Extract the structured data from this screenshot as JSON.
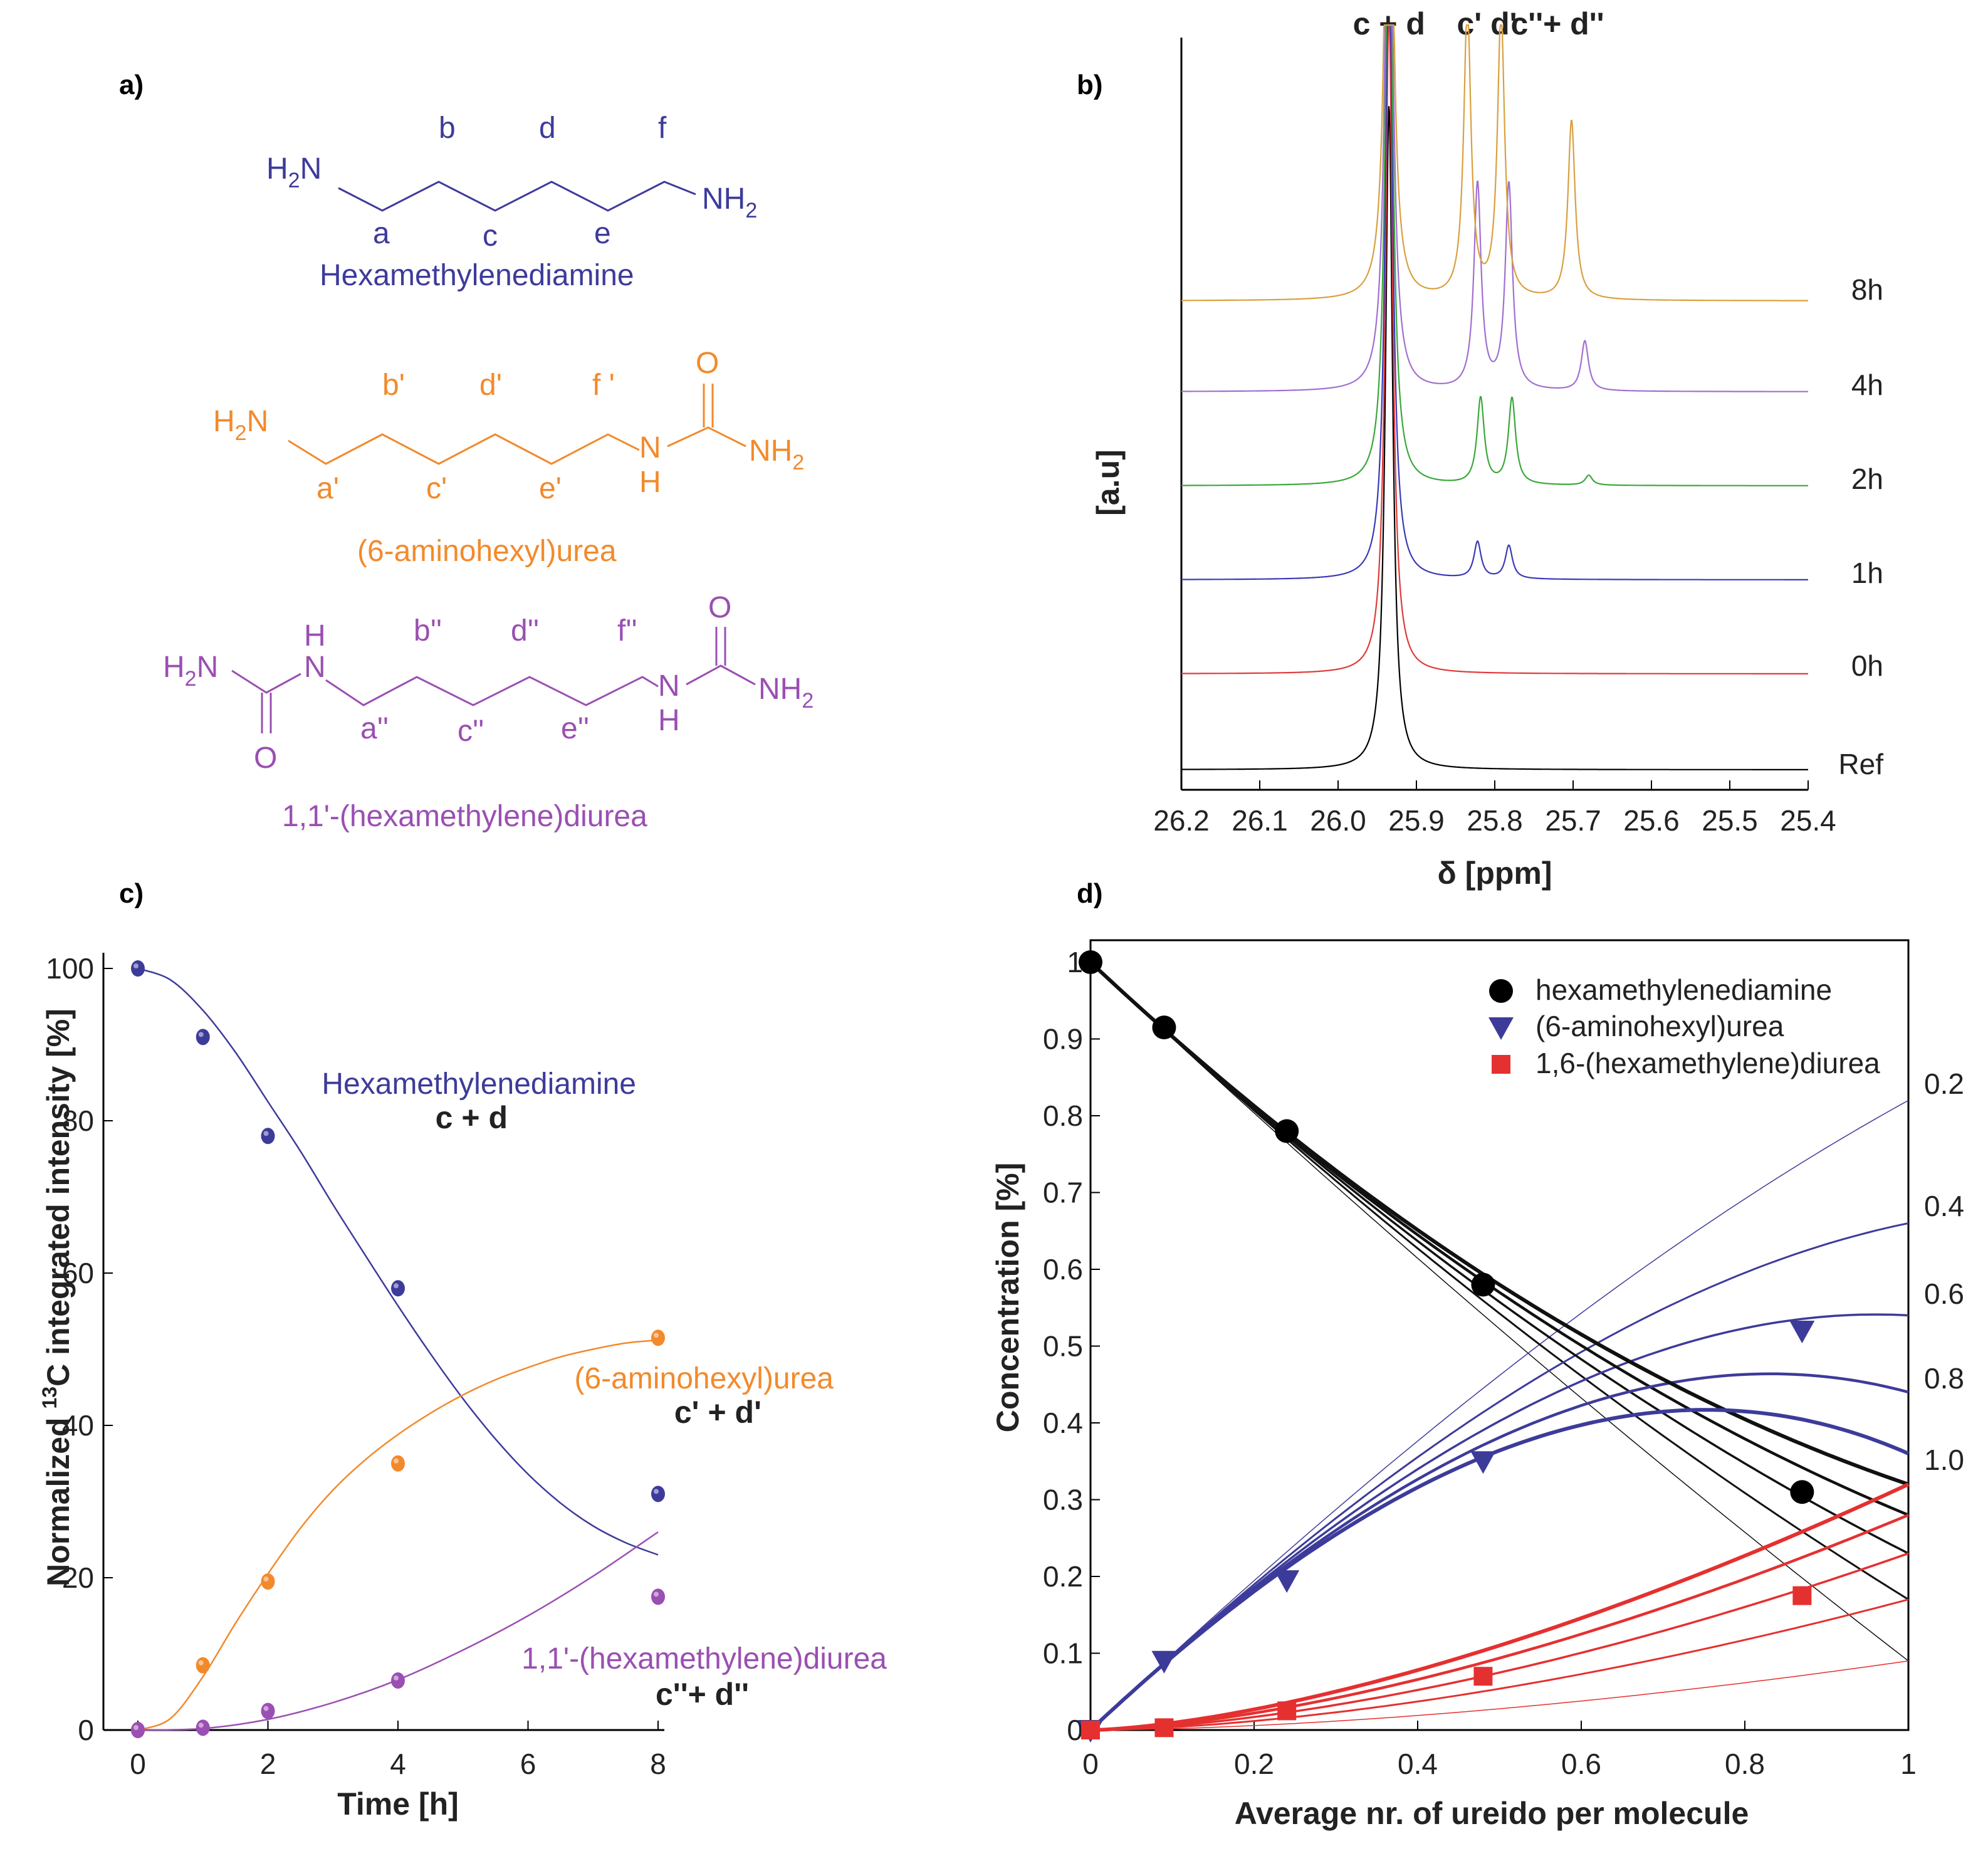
{
  "panel_labels": {
    "a": "a)",
    "b": "b)",
    "c": "c)",
    "d": "d)"
  },
  "molecules": [
    {
      "name": "Hexamethylenediamine",
      "color": "#3d3b9a",
      "left_group": "H2N",
      "right_group": "NH2",
      "top_letters": [
        "b",
        "d",
        "f"
      ],
      "bottom_letters": [
        "a",
        "c",
        "e"
      ]
    },
    {
      "name": "(6-aminohexyl)urea",
      "color": "#f28a2c",
      "left_group": "H2N",
      "right_group": "NH2",
      "urea_N": "N",
      "urea_H": "H",
      "urea_O": "O",
      "top_letters": [
        "b'",
        "d'",
        "f '"
      ],
      "bottom_letters": [
        "a'",
        "c'",
        "e'"
      ]
    },
    {
      "name": "1,1'-(hexamethylene)diurea",
      "color": "#9a4fb2",
      "left_group": "H2N",
      "right_group": "NH2",
      "urea_N": "N",
      "urea_H": "H",
      "urea_O": "O",
      "top_letters": [
        "b''",
        "d''",
        "f''"
      ],
      "bottom_letters": [
        "a''",
        "c''",
        "e''"
      ]
    }
  ],
  "chart_data": [
    {
      "id": "b",
      "type": "line",
      "title": "",
      "xlabel": "δ [ppm]",
      "ylabel": "[a.u]",
      "xlim": [
        26.2,
        25.4
      ],
      "x_ticks": [
        "26.2",
        "26.1",
        "26.0",
        "25.9",
        "25.8",
        "25.7",
        "25.6",
        "25.5",
        "25.4"
      ],
      "peak_labels": [
        {
          "text": "c + d",
          "ppm": 25.935
        },
        {
          "text": "c' d'",
          "ppm": 25.81
        },
        {
          "text": "c''+ d''",
          "ppm": 25.72
        }
      ],
      "series": [
        {
          "name": "Ref",
          "color": "#000000",
          "peaks": [
            {
              "ppm": 25.935,
              "height": 1.0
            }
          ]
        },
        {
          "name": "0h",
          "color": "#e03a3a",
          "peaks": [
            {
              "ppm": 25.935,
              "height": 1.0
            }
          ]
        },
        {
          "name": "1h",
          "color": "#3a3ab8",
          "peaks": [
            {
              "ppm": 25.935,
              "height": 1.0
            },
            {
              "ppm": 25.822,
              "height": 0.055
            },
            {
              "ppm": 25.782,
              "height": 0.05
            }
          ]
        },
        {
          "name": "2h",
          "color": "#3aa83a",
          "peaks": [
            {
              "ppm": 25.935,
              "height": 1.0
            },
            {
              "ppm": 25.818,
              "height": 0.13
            },
            {
              "ppm": 25.778,
              "height": 0.13
            },
            {
              "ppm": 25.68,
              "height": 0.015
            }
          ]
        },
        {
          "name": "4h",
          "color": "#a070d0",
          "peaks": [
            {
              "ppm": 25.935,
              "height": 1.0
            },
            {
              "ppm": 25.822,
              "height": 0.31
            },
            {
              "ppm": 25.782,
              "height": 0.31
            },
            {
              "ppm": 25.685,
              "height": 0.075
            }
          ]
        },
        {
          "name": "8h",
          "color": "#d9a040",
          "peaks": [
            {
              "ppm": 25.935,
              "height": 1.0
            },
            {
              "ppm": 25.835,
              "height": 0.44
            },
            {
              "ppm": 25.792,
              "height": 0.43
            },
            {
              "ppm": 25.702,
              "height": 0.27
            }
          ]
        }
      ]
    },
    {
      "id": "c",
      "type": "scatter",
      "title": "",
      "xlabel": "Time [h]",
      "ylabel": "Normalized 13C integrated intensity [%]",
      "ylabel_parts": [
        "Normalized ",
        "13",
        "C integrated intensity [%]"
      ],
      "xlim": [
        0,
        8
      ],
      "ylim": [
        0,
        100
      ],
      "x_ticks": [
        0,
        2,
        4,
        6,
        8
      ],
      "y_ticks": [
        0,
        20,
        40,
        60,
        80,
        100
      ],
      "series": [
        {
          "name": "Hexamethylenediamine",
          "sublabel": "c + d",
          "color": "#3d3b9a",
          "x": [
            0,
            1,
            2,
            4,
            8
          ],
          "y": [
            100,
            91,
            78,
            58,
            31
          ],
          "fit_x": [
            0,
            0.5,
            1,
            1.5,
            2,
            2.5,
            3,
            3.5,
            4,
            4.5,
            5,
            5.5,
            6,
            6.5,
            7,
            7.5,
            8
          ],
          "fit_y": [
            100,
            98.5,
            94.5,
            89,
            82.5,
            76,
            69,
            62.3,
            55.7,
            49.4,
            43.5,
            38.2,
            33.6,
            29.8,
            26.8,
            24.6,
            23
          ]
        },
        {
          "name": "(6-aminohexyl)urea",
          "sublabel": "c' + d'",
          "color": "#f28a2c",
          "x": [
            0,
            1,
            2,
            4,
            8
          ],
          "y": [
            0,
            8.5,
            19.5,
            35,
            51.5
          ],
          "fit_x": [
            0,
            0.5,
            1,
            1.5,
            2,
            2.5,
            3,
            3.5,
            4,
            4.5,
            5,
            5.5,
            6,
            6.5,
            7,
            7.5,
            8
          ],
          "fit_y": [
            0,
            1.5,
            7,
            14,
            20.5,
            26.5,
            31.5,
            35.5,
            38.8,
            41.6,
            44,
            46,
            47.6,
            49,
            50,
            50.8,
            51.2
          ]
        },
        {
          "name": "1,1'-(hexamethylene)diurea",
          "sublabel": "c''+ d''",
          "color": "#9a4fb2",
          "x": [
            0,
            1,
            2,
            4,
            8
          ],
          "y": [
            0,
            0.3,
            2.5,
            6.5,
            17.5
          ],
          "fit_x": [
            0,
            1,
            2,
            3,
            4,
            5,
            6,
            7,
            8
          ],
          "fit_y": [
            0,
            0.2,
            1.4,
            3.6,
            6.6,
            10.5,
            15,
            20.2,
            26
          ]
        }
      ]
    },
    {
      "id": "d",
      "type": "line",
      "title": "",
      "xlabel": "Average nr. of ureido per molecule",
      "ylabel": "Concentration [%]",
      "xlim": [
        0,
        1
      ],
      "ylim": [
        0,
        1
      ],
      "x_ticks": [
        "0",
        "0.2",
        "0.4",
        "0.6",
        "0.8",
        "1"
      ],
      "y_ticks": [
        "0",
        "0.1",
        "0.2",
        "0.3",
        "0.4",
        "0.5",
        "0.6",
        "0.7",
        "0.8",
        "0.9",
        "1"
      ],
      "legend": [
        {
          "label": "hexamethylenediamine",
          "marker": "circle",
          "color": "#000000"
        },
        {
          "label": "(6-aminohexyl)urea",
          "marker": "triangle-down",
          "color": "#3d3b9a"
        },
        {
          "label": "1,6-(hexamethylene)diurea",
          "marker": "square",
          "color": "#e53030"
        }
      ],
      "curve_params": [
        "0.2",
        "0.4",
        "0.6",
        "0.8",
        "1.0"
      ],
      "curve_endpoints": {
        "black": [
          0.09,
          0.17,
          0.23,
          0.28,
          0.32
        ],
        "blue": [
          0.82,
          0.66,
          0.54,
          0.44,
          0.36
        ],
        "red": [
          0.09,
          0.17,
          0.23,
          0.28,
          0.32
        ]
      },
      "points": {
        "hexamethylenediamine": {
          "x": [
            0,
            0.09,
            0.24,
            0.48,
            0.87
          ],
          "y": [
            1.0,
            0.915,
            0.78,
            0.58,
            0.31
          ]
        },
        "aminohexylurea": {
          "x": [
            0,
            0.09,
            0.24,
            0.48,
            0.87
          ],
          "y": [
            0,
            0.09,
            0.195,
            0.35,
            0.52
          ]
        },
        "diurea": {
          "x": [
            0,
            0.09,
            0.24,
            0.48,
            0.87
          ],
          "y": [
            0,
            0.003,
            0.025,
            0.07,
            0.175
          ]
        }
      }
    }
  ]
}
